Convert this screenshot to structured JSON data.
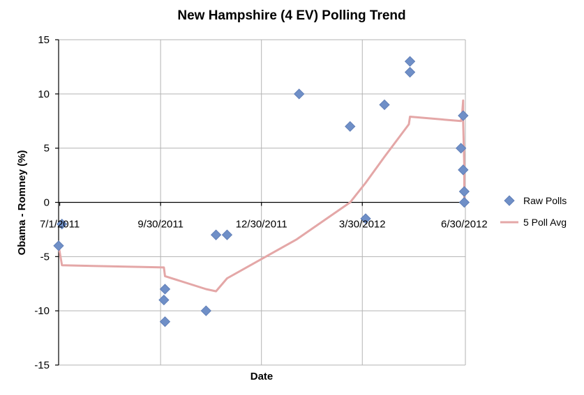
{
  "chart_data": {
    "type": "scatter",
    "title": "New Hampshire (4 EV) Polling Trend",
    "xlabel": "Date",
    "ylabel": "Obama - Romney (%)",
    "ylim": [
      -15,
      15
    ],
    "y_ticks": [
      -15,
      -10,
      -5,
      0,
      5,
      10,
      15
    ],
    "x_tick_labels": [
      "7/1/2011",
      "9/30/2011",
      "12/30/2011",
      "3/30/2012",
      "6/30/2012"
    ],
    "grid": true,
    "legend_position": "right",
    "series": [
      {
        "name": "Raw Polls",
        "kind": "markers",
        "color": "#6f8fc7",
        "points": [
          {
            "date": "2011-06-30",
            "value": -4
          },
          {
            "date": "2011-07-03",
            "value": -2
          },
          {
            "date": "2011-10-04",
            "value": -8
          },
          {
            "date": "2011-10-03",
            "value": -9
          },
          {
            "date": "2011-10-04",
            "value": -11
          },
          {
            "date": "2011-11-10",
            "value": -10
          },
          {
            "date": "2011-11-19",
            "value": -3
          },
          {
            "date": "2011-11-29",
            "value": -3
          },
          {
            "date": "2012-02-02",
            "value": 10
          },
          {
            "date": "2012-03-19",
            "value": 7
          },
          {
            "date": "2012-04-02",
            "value": -1.5
          },
          {
            "date": "2012-04-19",
            "value": 9
          },
          {
            "date": "2012-05-12",
            "value": 13
          },
          {
            "date": "2012-05-12",
            "value": 12
          },
          {
            "date": "2012-06-27",
            "value": 5
          },
          {
            "date": "2012-06-29",
            "value": 8
          },
          {
            "date": "2012-06-29",
            "value": 3
          },
          {
            "date": "2012-06-30",
            "value": 1
          },
          {
            "date": "2012-06-30",
            "value": 0
          }
        ]
      },
      {
        "name": "5 Poll Avg",
        "kind": "line",
        "color": "#e4a7a7",
        "points": [
          {
            "date": "2011-06-30",
            "value": -4
          },
          {
            "date": "2011-07-03",
            "value": -5.8
          },
          {
            "date": "2011-10-03",
            "value": -6
          },
          {
            "date": "2011-10-04",
            "value": -6.8
          },
          {
            "date": "2011-11-10",
            "value": -8
          },
          {
            "date": "2011-11-19",
            "value": -8.2
          },
          {
            "date": "2011-11-29",
            "value": -7
          },
          {
            "date": "2012-01-31",
            "value": -3.4
          },
          {
            "date": "2012-03-19",
            "value": 0
          },
          {
            "date": "2012-04-02",
            "value": 1.8
          },
          {
            "date": "2012-04-19",
            "value": 4.2
          },
          {
            "date": "2012-05-11",
            "value": 7.2
          },
          {
            "date": "2012-05-12",
            "value": 7.9
          },
          {
            "date": "2012-06-27",
            "value": 7.5
          },
          {
            "date": "2012-06-28",
            "value": 8
          },
          {
            "date": "2012-06-29",
            "value": 9.4
          },
          {
            "date": "2012-06-29",
            "value": 7.5
          },
          {
            "date": "2012-06-30",
            "value": 3.4
          },
          {
            "date": "2012-06-30",
            "value": 0
          }
        ]
      }
    ]
  }
}
